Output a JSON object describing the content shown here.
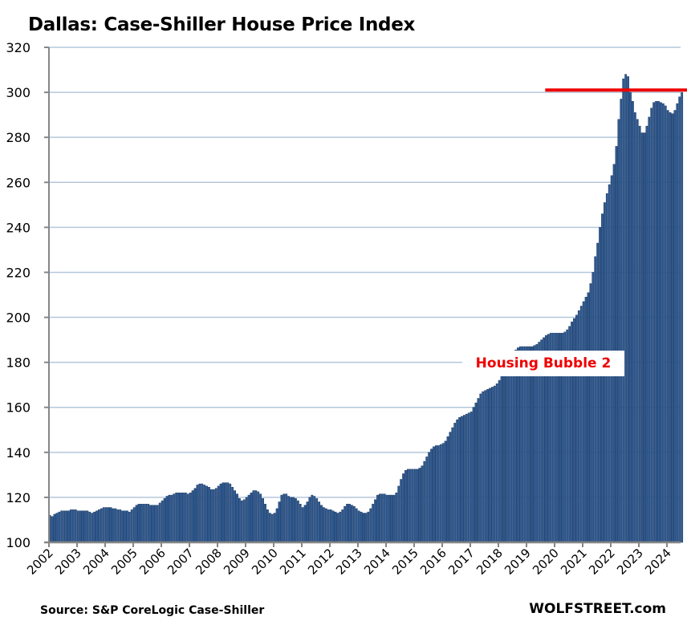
{
  "chart_data": {
    "type": "bar",
    "title": "Dallas: Case-Shiller House Price Index",
    "xlabel": "",
    "ylabel": "",
    "ylim": [
      100,
      320
    ],
    "yticks": [
      100,
      120,
      140,
      160,
      180,
      200,
      220,
      240,
      260,
      280,
      300,
      320
    ],
    "xticks": [
      "2002",
      "2003",
      "2004",
      "2005",
      "2006",
      "2007",
      "2008",
      "2009",
      "2010",
      "2011",
      "2012",
      "2013",
      "2014",
      "2015",
      "2016",
      "2017",
      "2018",
      "2019",
      "2020",
      "2021",
      "2022",
      "2023",
      "2024"
    ],
    "grid": true,
    "frequency": "monthly",
    "start": "2002-01",
    "bar_color": "#2f5b93",
    "annotation": {
      "text": "Housing Bubble 2",
      "color": "#ee0000"
    },
    "reference_line": {
      "value": 301,
      "from": "2019-09",
      "color": "#ee0000"
    },
    "series": [
      {
        "name": "Dallas Case-Shiller Index",
        "values": [
          112,
          111.5,
          112.5,
          113,
          113.5,
          114,
          114,
          114,
          114,
          114.5,
          114.5,
          114.5,
          114,
          114,
          114,
          114,
          114,
          113.5,
          113,
          113.5,
          114,
          114.5,
          115,
          115.5,
          115.5,
          115.5,
          115.5,
          115,
          115,
          114.5,
          114.5,
          114,
          114,
          114,
          113.5,
          114.5,
          115.5,
          116.5,
          117,
          117,
          117,
          117,
          117,
          116.5,
          116.5,
          116.5,
          116.5,
          117.5,
          118.5,
          119.5,
          120.5,
          121,
          121,
          121.5,
          122,
          122,
          122,
          122,
          122,
          121.5,
          122,
          123,
          124,
          125.5,
          126,
          126,
          125.5,
          125,
          124.5,
          123.5,
          123.5,
          124,
          125,
          126,
          126.5,
          126.5,
          126.5,
          126,
          124.5,
          123,
          121.5,
          119.5,
          118.5,
          119,
          120,
          121,
          122,
          123,
          123,
          122.5,
          121.5,
          119.5,
          117,
          114.5,
          113,
          112.5,
          113,
          115,
          118,
          121,
          121.5,
          121.5,
          120.5,
          120,
          120,
          119.5,
          118.5,
          117,
          115.5,
          116.5,
          118,
          120,
          121,
          120.5,
          119.5,
          118,
          116.5,
          115.5,
          115,
          114.5,
          114.5,
          114,
          113.5,
          113,
          113.5,
          114.5,
          116,
          117,
          117,
          116.5,
          116,
          115,
          114,
          113.5,
          113,
          113,
          113.5,
          115,
          117,
          119,
          121,
          121.5,
          121.5,
          121.5,
          121,
          121,
          121,
          121,
          122,
          125,
          128,
          130.5,
          132,
          132.5,
          132.5,
          132.5,
          132.5,
          132.5,
          133,
          134,
          136,
          138,
          140,
          141.5,
          142.5,
          143,
          143,
          143.5,
          144,
          145,
          147,
          149,
          151,
          153,
          154.5,
          155.5,
          156,
          156.5,
          157,
          157.5,
          158,
          160,
          162,
          164,
          166,
          167,
          167.5,
          168,
          168.5,
          169,
          169.5,
          170.5,
          172,
          174,
          176,
          178,
          180,
          182,
          184,
          185.5,
          186.5,
          187,
          187,
          187,
          187,
          187,
          187,
          187.5,
          188,
          189,
          190,
          191,
          192,
          192.5,
          193,
          193,
          193,
          193,
          193,
          193,
          193.5,
          194.5,
          196,
          198,
          199.5,
          201,
          203,
          205,
          207,
          209,
          211,
          215,
          220,
          227,
          233,
          240,
          246,
          251,
          255,
          259,
          263,
          268,
          276,
          288,
          297,
          306,
          308,
          307,
          300,
          296,
          291,
          288,
          285,
          282,
          282,
          285,
          289,
          293,
          295.5,
          296,
          296,
          295.5,
          295,
          294,
          292,
          291,
          290.5,
          292,
          295,
          298,
          300
        ]
      }
    ]
  },
  "footer": {
    "source": "Source: S&P CoreLogic Case-Shiller",
    "brand": "WOLFSTREET.com"
  }
}
